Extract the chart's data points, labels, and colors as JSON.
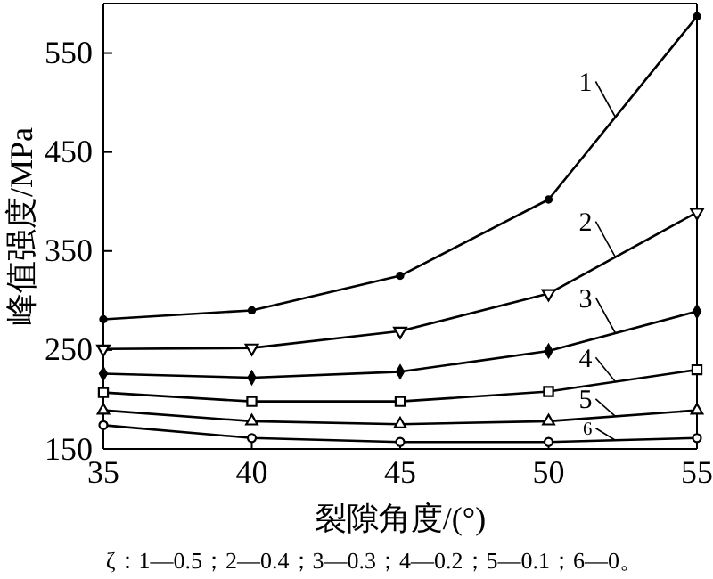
{
  "chart_data": {
    "type": "line",
    "xlabel": "裂隙角度/(°)",
    "ylabel": "峰值强度/MPa",
    "x": [
      35,
      40,
      45,
      50,
      55
    ],
    "xlim": [
      35,
      55
    ],
    "xticks": [
      35,
      40,
      45,
      50,
      55
    ],
    "ylim": [
      150,
      600
    ],
    "yticks": [
      150,
      250,
      350,
      450,
      550
    ],
    "grid": false,
    "legend": "right",
    "line_style": "solid",
    "series": [
      {
        "name": "1",
        "color": "#000000",
        "marker": "circle",
        "values": [
          281,
          290,
          325,
          402,
          587
        ]
      },
      {
        "name": "2",
        "color": "#000000",
        "marker": "triangle-down",
        "values": [
          251,
          252,
          269,
          307,
          389
        ]
      },
      {
        "name": "3",
        "color": "#000000",
        "marker": "diamond",
        "values": [
          226,
          222,
          228,
          249,
          289
        ]
      },
      {
        "name": "4",
        "color": "#000000",
        "marker": "square",
        "values": [
          207,
          198,
          198,
          208,
          230
        ]
      },
      {
        "name": "5",
        "color": "#000000",
        "marker": "triangle",
        "values": [
          189,
          178,
          175,
          178,
          189
        ]
      },
      {
        "name": "6",
        "color": "#000000",
        "marker": "circle-open",
        "values": [
          174,
          161,
          157,
          157,
          161
        ]
      }
    ],
    "annotations": [
      "ζ：1—0.5；2—0.4；3—0.3；4—0.2；5—0.1；6—0。"
    ]
  }
}
